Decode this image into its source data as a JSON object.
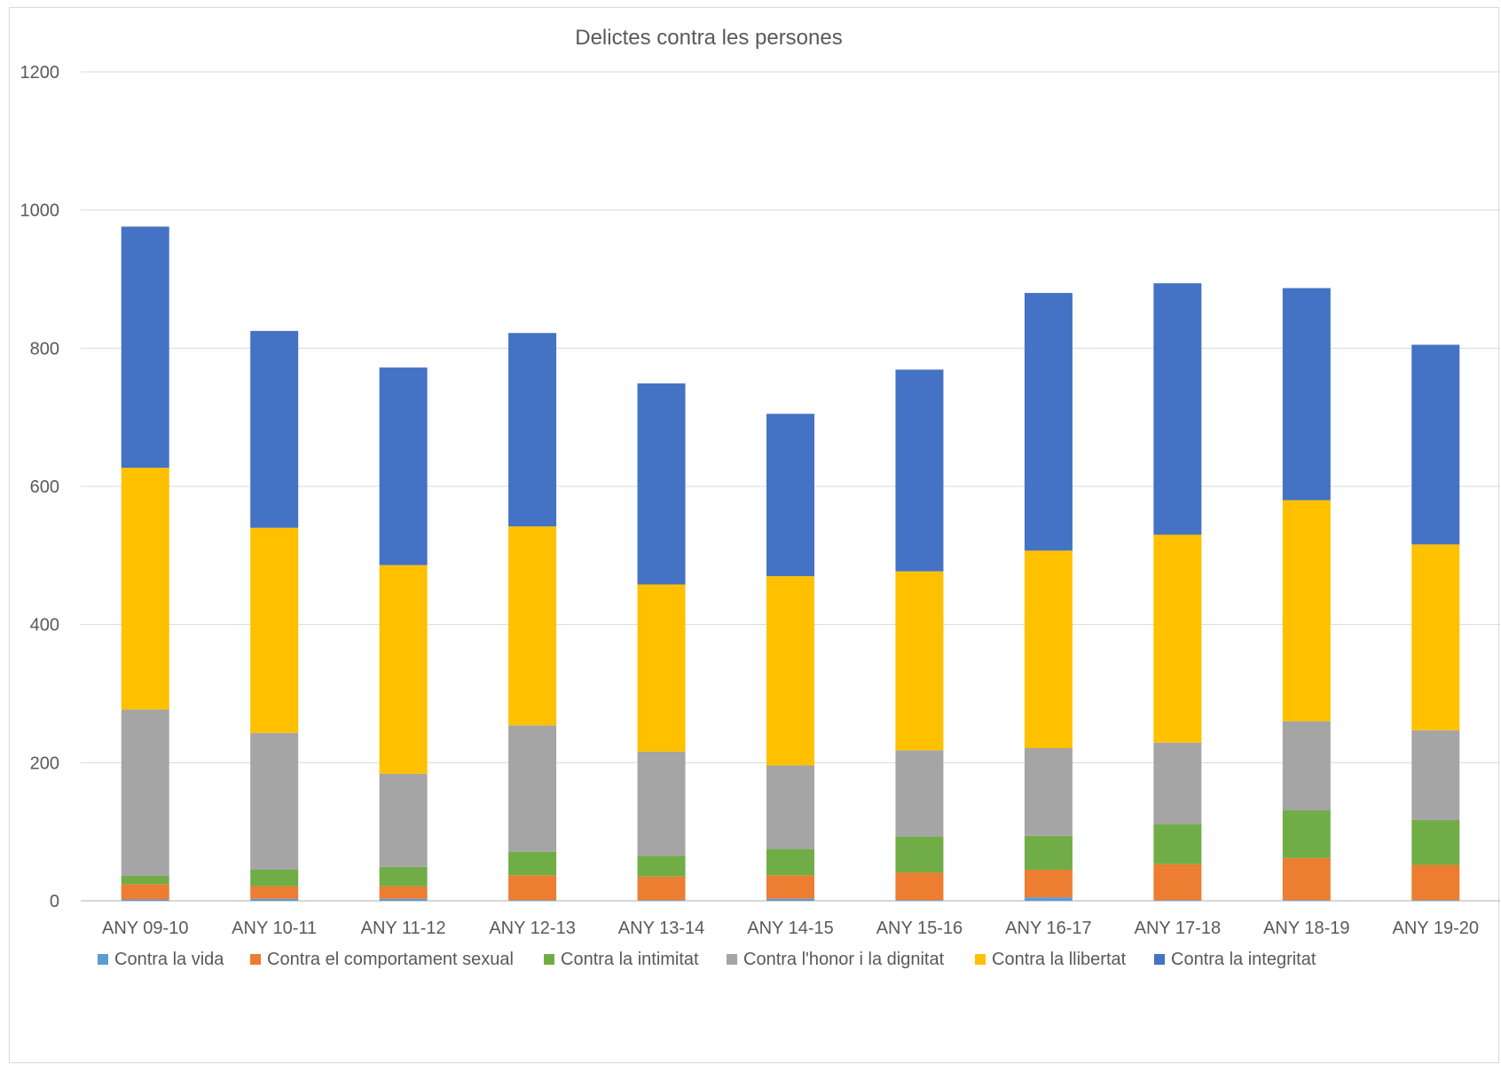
{
  "chart_data": {
    "type": "bar",
    "stacked": true,
    "title": "Delictes contra les persones",
    "xlabel": "",
    "ylabel": "",
    "ylim": [
      0,
      1200
    ],
    "yticks": [
      0,
      200,
      400,
      600,
      800,
      1000,
      1200
    ],
    "grid": true,
    "legend_position": "bottom",
    "categories": [
      "ANY 09-10",
      "ANY 10-11",
      "ANY 11-12",
      "ANY 12-13",
      "ANY 13-14",
      "ANY 14-15",
      "ANY 15-16",
      "ANY 16-17",
      "ANY 17-18",
      "ANY 18-19",
      "ANY 19-20"
    ],
    "series": [
      {
        "name": "Contra la vida",
        "color": "#5B9BD5",
        "values": [
          2,
          3,
          3,
          1,
          1,
          3,
          1,
          5,
          1,
          1,
          1
        ]
      },
      {
        "name": "Contra el comportament sexual",
        "color": "#ED7D31",
        "values": [
          22,
          18,
          18,
          36,
          34,
          34,
          40,
          40,
          52,
          61,
          51
        ]
      },
      {
        "name": "Contra la intimitat",
        "color": "#70AD47",
        "values": [
          12,
          24,
          28,
          34,
          30,
          38,
          52,
          49,
          58,
          69,
          65
        ]
      },
      {
        "name": "Contra l'honor i la dignitat",
        "color": "#A5A5A5",
        "values": [
          241,
          198,
          135,
          183,
          151,
          121,
          125,
          127,
          118,
          129,
          130
        ]
      },
      {
        "name": "Contra la llibertat",
        "color": "#FFC000",
        "values": [
          350,
          297,
          302,
          288,
          242,
          274,
          259,
          286,
          301,
          320,
          269
        ]
      },
      {
        "name": "Contra la integritat",
        "color": "#4472C4",
        "values": [
          349,
          285,
          286,
          280,
          291,
          235,
          292,
          373,
          364,
          307,
          289
        ]
      }
    ]
  }
}
